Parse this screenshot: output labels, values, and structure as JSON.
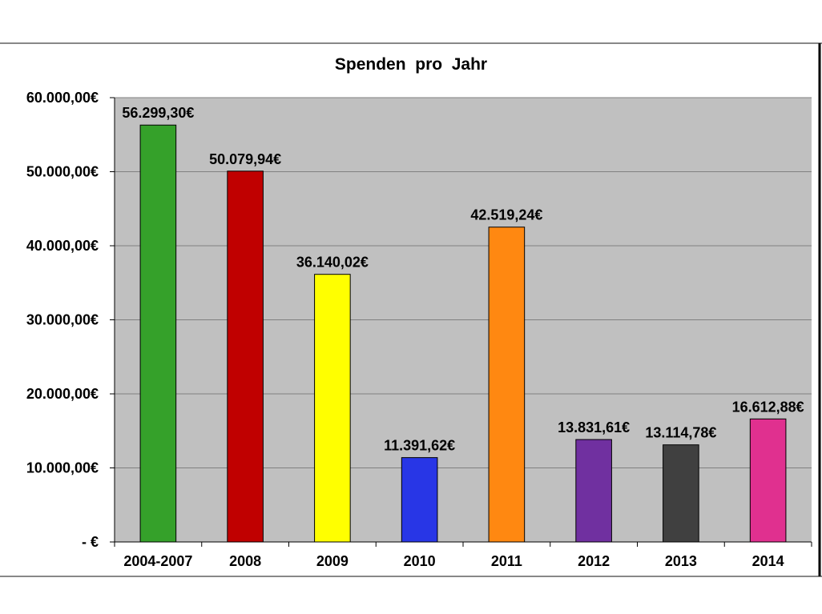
{
  "chart_data": {
    "type": "bar",
    "title": "Spenden  pro  Jahr",
    "xlabel": "",
    "ylabel": "",
    "categories": [
      "2004-2007",
      "2008",
      "2009",
      "2010",
      "2011",
      "2012",
      "2013",
      "2014"
    ],
    "values": [
      56299.3,
      50079.94,
      36140.02,
      11391.62,
      42519.24,
      13831.61,
      13114.78,
      16612.88
    ],
    "value_labels": [
      "56.299,30€",
      "50.079,94€",
      "36.140,02€",
      "11.391,62€",
      "42.519,24€",
      "13.831,61€",
      "13.114,78€",
      "16.612,88€"
    ],
    "bar_colors": [
      "#35A12A",
      "#C00000",
      "#FFFF00",
      "#2836E6",
      "#FF8811",
      "#7030A0",
      "#404040",
      "#E0308F"
    ],
    "ylim": [
      0,
      60000
    ],
    "yticks": [
      0,
      10000,
      20000,
      30000,
      40000,
      50000,
      60000
    ],
    "ytick_labels": [
      "-  €",
      "10.000,00€",
      "20.000,00€",
      "30.000,00€",
      "40.000,00€",
      "50.000,00€",
      "60.000,00€"
    ],
    "grid": true,
    "legend": "none",
    "plot_background": "#C0C0C0"
  }
}
